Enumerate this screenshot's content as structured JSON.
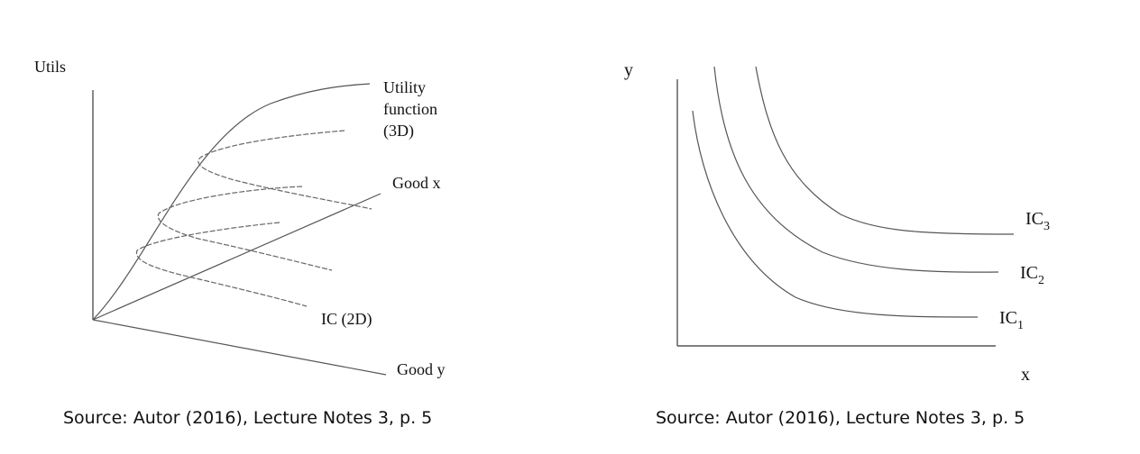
{
  "left_diagram": {
    "y_axis_label": "Utils",
    "utility_label_lines": [
      "Utility",
      "function",
      "(3D)"
    ],
    "good_x_label": "Good x",
    "good_y_label": "Good y",
    "ic_label": "IC (2D)",
    "source": "Source: Autor (2016), Lecture Notes 3, p. 5"
  },
  "right_diagram": {
    "y_axis_label": "y",
    "x_axis_label": "x",
    "curves": [
      {
        "base": "IC",
        "sub": "3"
      },
      {
        "base": "IC",
        "sub": "2"
      },
      {
        "base": "IC",
        "sub": "1"
      }
    ],
    "source": "Source: Autor (2016), Lecture Notes 3, p. 5"
  }
}
